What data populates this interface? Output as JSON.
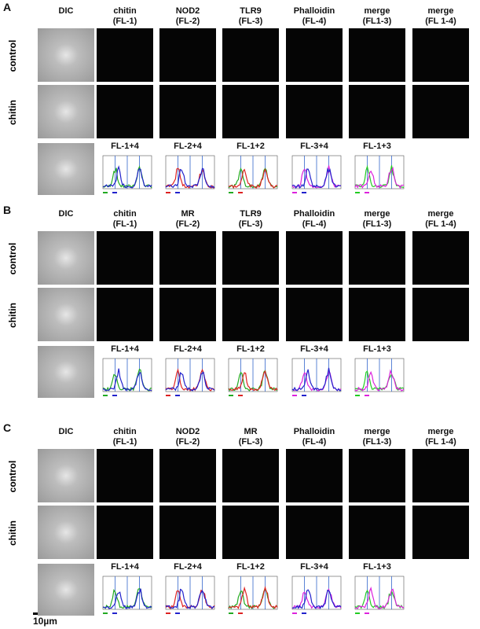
{
  "panels": [
    {
      "letter": "A",
      "headers": [
        [
          "DIC"
        ],
        [
          "chitin",
          "(FL-1)"
        ],
        [
          "NOD2",
          "(FL-2)"
        ],
        [
          "TLR9",
          "(FL-3)"
        ],
        [
          "Phalloidin",
          "(FL-4)"
        ],
        [
          "merge",
          "(FL1-3)"
        ],
        [
          "merge",
          "(FL 1-4)"
        ]
      ],
      "rows": [
        "control",
        "chitin"
      ],
      "plots": [
        "FL-1+4",
        "FL-2+4",
        "FL-1+2",
        "FL-3+4",
        "FL-1+3"
      ]
    },
    {
      "letter": "B",
      "headers": [
        [
          "DIC"
        ],
        [
          "chitin",
          "(FL-1)"
        ],
        [
          "MR",
          "(FL-2)"
        ],
        [
          "TLR9",
          "(FL-3)"
        ],
        [
          "Phalloidin",
          "(FL-4)"
        ],
        [
          "merge",
          "(FL1-3)"
        ],
        [
          "merge",
          "(FL 1-4)"
        ]
      ],
      "rows": [
        "control",
        "chitin"
      ],
      "plots": [
        "FL-1+4",
        "FL-2+4",
        "FL-1+2",
        "FL-3+4",
        "FL-1+3"
      ]
    },
    {
      "letter": "C",
      "headers": [
        [
          "DIC"
        ],
        [
          "chitin",
          "(FL-1)"
        ],
        [
          "NOD2",
          "(FL-2)"
        ],
        [
          "MR",
          "(FL-3)"
        ],
        [
          "Phalloidin",
          "(FL-4)"
        ],
        [
          "merge",
          "(FL1-3)"
        ],
        [
          "merge",
          "(FL 1-4)"
        ]
      ],
      "rows": [
        "control",
        "chitin"
      ],
      "plots": [
        "FL-1+4",
        "FL-2+4",
        "FL-1+2",
        "FL-3+4",
        "FL-1+3"
      ]
    }
  ],
  "scale_bar": "10µm"
}
